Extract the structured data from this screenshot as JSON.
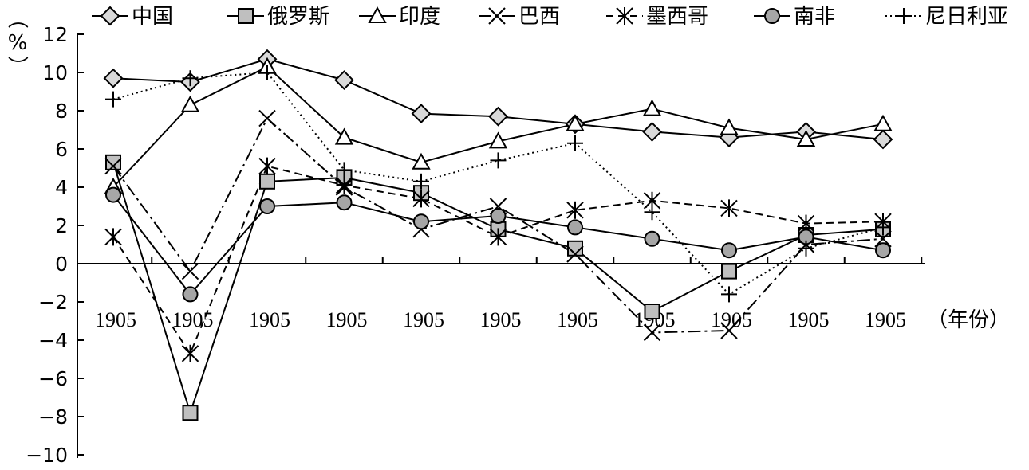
{
  "chart_data": {
    "type": "line",
    "title": "",
    "xlabel": "（年份）",
    "ylabel": "（%）",
    "ylim": [
      -10,
      12
    ],
    "yticks": [
      -10,
      -8,
      -6,
      -4,
      -2,
      0,
      2,
      4,
      6,
      8,
      10,
      12
    ],
    "categories": [
      "1905",
      "1905",
      "1905",
      "1905",
      "1905",
      "1905",
      "1905",
      "1905",
      "1905",
      "1905",
      "1905"
    ],
    "grid": false,
    "legend_position": "top",
    "series": [
      {
        "name": "中国",
        "marker": "diamond",
        "dash": "solid",
        "color": "#000000",
        "fill": "#d9d9d9",
        "values": [
          9.7,
          9.5,
          10.7,
          9.6,
          7.85,
          7.7,
          7.3,
          6.9,
          6.6,
          6.9,
          6.5
        ]
      },
      {
        "name": "俄罗斯",
        "marker": "square",
        "dash": "solid",
        "color": "#000000",
        "fill": "#bfbfbf",
        "values": [
          5.3,
          -7.8,
          4.3,
          4.5,
          3.7,
          1.8,
          0.8,
          -2.5,
          -0.4,
          1.5,
          1.8
        ]
      },
      {
        "name": "印度",
        "marker": "triangle",
        "dash": "solid",
        "color": "#000000",
        "fill": "#ffffff",
        "values": [
          4.0,
          8.3,
          10.3,
          6.6,
          5.3,
          6.4,
          7.3,
          8.1,
          7.1,
          6.5,
          7.3
        ]
      },
      {
        "name": "巴西",
        "marker": "x",
        "dash": "dashdot",
        "color": "#000000",
        "fill": "none",
        "values": [
          5.1,
          -0.4,
          7.6,
          4.0,
          1.8,
          3.0,
          0.5,
          -3.6,
          -3.5,
          1.0,
          1.3
        ]
      },
      {
        "name": "墨西哥",
        "marker": "asterisk",
        "dash": "dashed",
        "color": "#000000",
        "fill": "none",
        "values": [
          1.4,
          -4.7,
          5.1,
          4.1,
          3.4,
          1.4,
          2.8,
          3.3,
          2.9,
          2.1,
          2.2
        ]
      },
      {
        "name": "南非",
        "marker": "circle",
        "dash": "solid",
        "color": "#000000",
        "fill": "#a6a6a6",
        "values": [
          3.6,
          -1.6,
          3.0,
          3.2,
          2.2,
          2.5,
          1.9,
          1.3,
          0.7,
          1.4,
          0.7
        ]
      },
      {
        "name": "尼日利亚",
        "marker": "plus",
        "dash": "dotted",
        "color": "#000000",
        "fill": "none",
        "values": [
          8.6,
          9.7,
          10.0,
          4.9,
          4.3,
          5.4,
          6.3,
          2.7,
          -1.6,
          0.8,
          1.9
        ]
      }
    ]
  }
}
